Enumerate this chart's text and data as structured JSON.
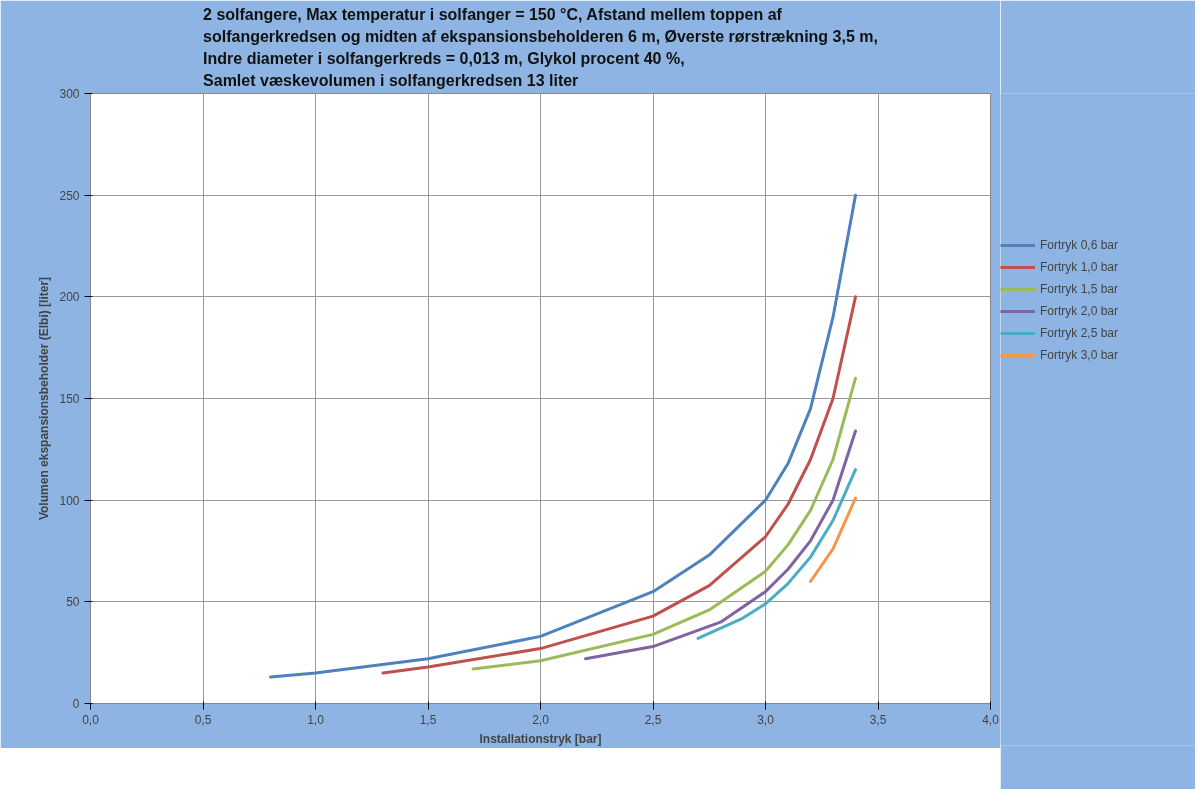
{
  "chart_data": {
    "type": "line",
    "title": "2 solfangere, Max temperatur i solfanger = 150 °C, Afstand mellem toppen af\nsolfangerkredsen og midten af ekspansionsbeholderen 6 m, Øverste rørstrækning 3,5 m,\nIndre diameter i solfangerkreds = 0,013 m, Glykol procent 40 %,\nSamlet væskevolumen i solfangerkredsen 13 liter",
    "xlabel": "Installationstryk [bar]",
    "ylabel": "Volumen ekspansionsbeholder (Elbi) [liter]",
    "xlim": [
      0,
      4
    ],
    "ylim": [
      0,
      300
    ],
    "xticks": [
      {
        "value": 0,
        "label": "0,0"
      },
      {
        "value": 0.5,
        "label": "0,5"
      },
      {
        "value": 1,
        "label": "1,0"
      },
      {
        "value": 1.5,
        "label": "1,5"
      },
      {
        "value": 2,
        "label": "2,0"
      },
      {
        "value": 2.5,
        "label": "2,5"
      },
      {
        "value": 3,
        "label": "3,0"
      },
      {
        "value": 3.5,
        "label": "3,5"
      },
      {
        "value": 4,
        "label": "4,0"
      }
    ],
    "yticks": [
      0,
      50,
      100,
      150,
      200,
      250,
      300
    ],
    "grid": true,
    "legend": "right",
    "marker": "none",
    "line_style": "solid",
    "series": [
      {
        "name": "Fortryk 0,6 bar",
        "color": "#4f81bd",
        "x": [
          0.8,
          1.0,
          1.5,
          2.0,
          2.5,
          2.75,
          3.0,
          3.1,
          3.2,
          3.3,
          3.4
        ],
        "values": [
          13,
          15,
          22,
          33,
          55,
          73,
          100,
          118,
          145,
          190,
          250
        ]
      },
      {
        "name": "Fortryk 1,0 bar",
        "color": "#c0504d",
        "x": [
          1.3,
          1.5,
          2.0,
          2.5,
          2.75,
          3.0,
          3.1,
          3.2,
          3.3,
          3.4
        ],
        "values": [
          15,
          18,
          27,
          43,
          58,
          82,
          98,
          120,
          150,
          200
        ]
      },
      {
        "name": "Fortryk 1,5 bar",
        "color": "#9bbb59",
        "x": [
          1.7,
          2.0,
          2.5,
          2.75,
          3.0,
          3.1,
          3.2,
          3.3,
          3.4
        ],
        "values": [
          17,
          21,
          34,
          46,
          65,
          78,
          95,
          120,
          160
        ]
      },
      {
        "name": "Fortryk 2,0 bar",
        "color": "#8064a2",
        "x": [
          2.2,
          2.5,
          2.8,
          3.0,
          3.1,
          3.2,
          3.3,
          3.4
        ],
        "values": [
          22,
          28,
          40,
          55,
          66,
          80,
          100,
          134
        ]
      },
      {
        "name": "Fortryk 2,5 bar",
        "color": "#4bacc6",
        "x": [
          2.7,
          2.9,
          3.0,
          3.1,
          3.2,
          3.3,
          3.4
        ],
        "values": [
          32,
          42,
          49,
          59,
          72,
          90,
          115
        ]
      },
      {
        "name": "Fortryk 3,0 bar",
        "color": "#f79646",
        "x": [
          3.2,
          3.3,
          3.4
        ],
        "values": [
          60,
          76,
          101
        ]
      }
    ]
  }
}
